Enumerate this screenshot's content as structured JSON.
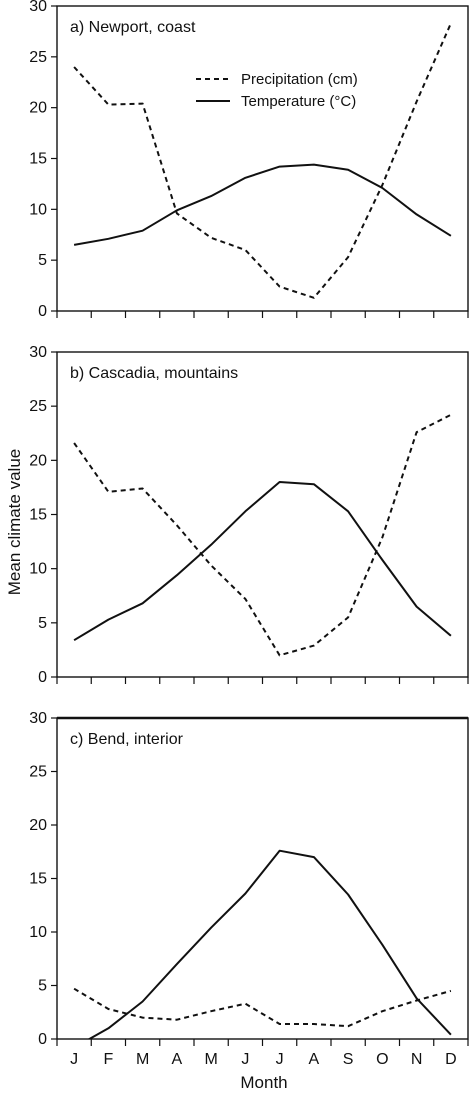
{
  "chart_data": {
    "type": "line",
    "ylabel": "Mean climate value",
    "xlabel": "Month",
    "categories": [
      "J",
      "F",
      "M",
      "A",
      "M",
      "J",
      "J",
      "A",
      "S",
      "O",
      "N",
      "D"
    ],
    "ylim": [
      0,
      30
    ],
    "yticks": [
      0,
      5,
      10,
      15,
      20,
      25,
      30
    ],
    "legend": {
      "placement": "top-center",
      "entries": [
        {
          "label": "Precipitation (cm)",
          "style": "dashed"
        },
        {
          "label": "Temperature (°C)",
          "style": "solid"
        }
      ]
    },
    "panels": [
      {
        "title": "a) Newport, coast",
        "series": [
          {
            "name": "Precipitation (cm)",
            "style": "dashed",
            "values": [
              24.0,
              20.3,
              20.4,
              9.6,
              7.2,
              6.0,
              2.4,
              1.3,
              5.3,
              12.4,
              20.6,
              28.3
            ]
          },
          {
            "name": "Temperature (°C)",
            "style": "solid",
            "values": [
              6.5,
              7.1,
              7.9,
              9.9,
              11.3,
              13.1,
              14.2,
              14.4,
              13.9,
              12.1,
              9.5,
              7.4
            ]
          }
        ]
      },
      {
        "title": "b) Cascadia, mountains",
        "series": [
          {
            "name": "Precipitation (cm)",
            "style": "dashed",
            "values": [
              21.6,
              17.1,
              17.4,
              14.0,
              10.3,
              7.2,
              2.0,
              2.9,
              5.5,
              12.9,
              22.6,
              24.2
            ]
          },
          {
            "name": "Temperature (°C)",
            "style": "solid",
            "values": [
              3.4,
              5.3,
              6.8,
              9.4,
              12.2,
              15.3,
              18.0,
              17.8,
              15.3,
              10.8,
              6.5,
              3.8
            ]
          }
        ]
      },
      {
        "title": "c) Bend, interior",
        "series": [
          {
            "name": "Precipitation (cm)",
            "style": "dashed",
            "values": [
              4.7,
              2.8,
              2.0,
              1.8,
              2.6,
              3.3,
              1.4,
              1.4,
              1.2,
              2.6,
              3.6,
              4.5
            ]
          },
          {
            "name": "Temperature (°C)",
            "style": "solid",
            "values": [
              -0.8,
              1.0,
              3.5,
              7.0,
              10.4,
              13.6,
              17.6,
              17.0,
              13.5,
              8.8,
              3.8,
              0.4
            ]
          }
        ]
      }
    ]
  }
}
